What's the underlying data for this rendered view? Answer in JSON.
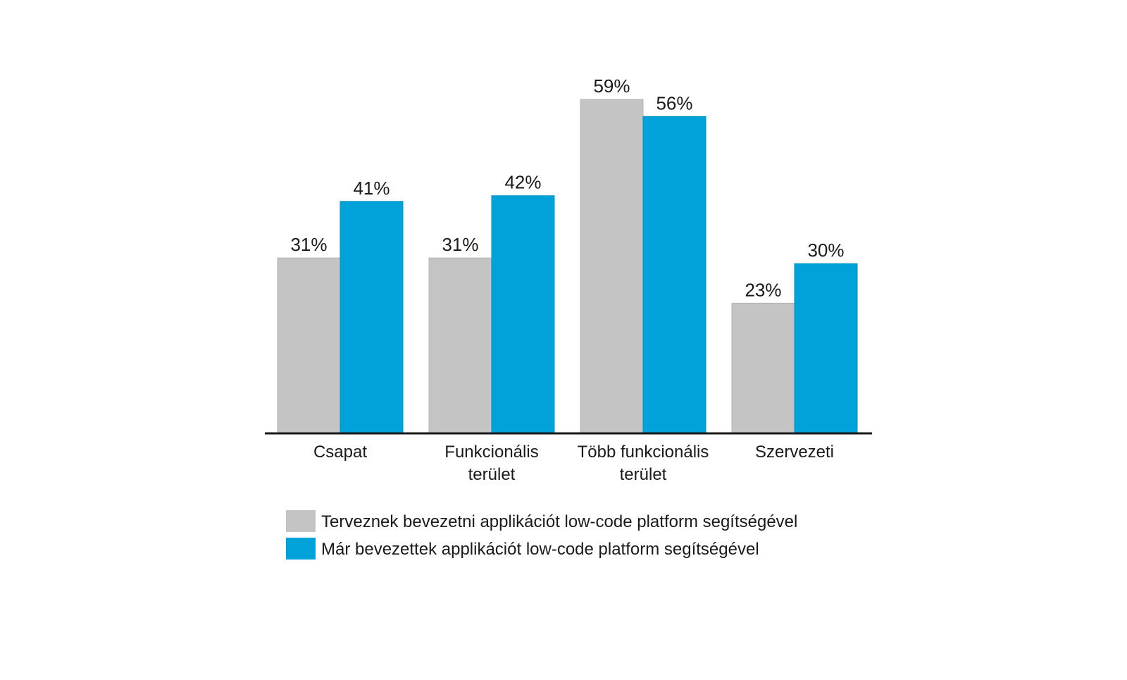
{
  "chart_data": {
    "type": "bar",
    "categories": [
      [
        "Csapat"
      ],
      [
        "Funkcionális",
        "terület"
      ],
      [
        "Több funkcionális",
        "terület"
      ],
      [
        "Szervezeti"
      ]
    ],
    "series": [
      {
        "name": "Terveznek bevezetni applikációt low-code platform segítségével",
        "values": [
          31,
          31,
          59,
          23
        ],
        "labels": [
          "31%",
          "31%",
          "59%",
          "23%"
        ],
        "color": "#c4c4c4"
      },
      {
        "name": "Már bevezettek applikációt low-code platform segítségével",
        "values": [
          41,
          42,
          56,
          30
        ],
        "labels": [
          "41%",
          "42%",
          "56%",
          "30%"
        ],
        "color": "#00a3d9"
      }
    ],
    "ylim": [
      0,
      60
    ],
    "grid": false,
    "legend_position": "bottom-left"
  }
}
